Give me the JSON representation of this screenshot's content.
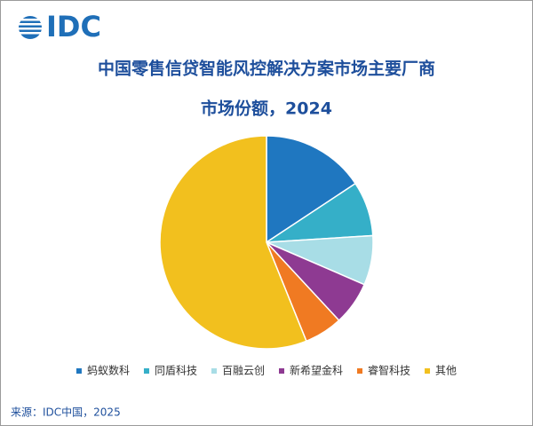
{
  "logo": "IDC",
  "chart_data": {
    "type": "pie",
    "title": "中国零售信贷智能风控解决方案市场主要厂商",
    "subtitle": "市场份额，2024",
    "categories": [
      "蚂蚁数科",
      "同盾科技",
      "百融云创",
      "新希望金科",
      "睿智科技",
      "其他"
    ],
    "values": [
      15.7,
      8.3,
      7.5,
      6.6,
      5.8,
      56.1
    ],
    "colors": [
      "#1f77c0",
      "#35afc8",
      "#a8dde6",
      "#8e3a92",
      "#f07a22",
      "#f2c01e"
    ],
    "legend": "bottom"
  },
  "source": "来源：IDC中国，2025"
}
